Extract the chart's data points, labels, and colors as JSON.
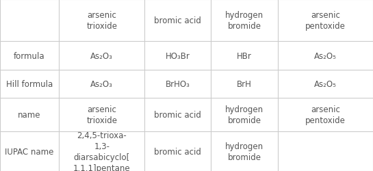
{
  "col_headers": [
    "arsenic\ntrioxide",
    "bromic acid",
    "hydrogen\nbromide",
    "arsenic\npentoxide"
  ],
  "row_headers": [
    "formula",
    "Hill formula",
    "name",
    "IUPAC name"
  ],
  "formula_row": [
    "As₂O₃",
    "HO₃Br",
    "HBr",
    "As₂O₅"
  ],
  "hill_row": [
    "As₂O₃",
    "BrHO₃",
    "BrH",
    "As₂O₅"
  ],
  "name_row": [
    "arsenic\ntrioxide",
    "bromic acid",
    "hydrogen\nbromide",
    "arsenic\npentoxide"
  ],
  "iupac_row": [
    "2,4,5-trioxa-\n1,3-\ndiarsabicyclo[\n1.1.1]pentane",
    "bromic acid",
    "hydrogen\nbromide",
    ""
  ],
  "col_starts": [
    0.0,
    0.158,
    0.388,
    0.565,
    0.745
  ],
  "col_ends": [
    0.158,
    0.388,
    0.565,
    0.745,
    1.0
  ],
  "row_tops": [
    1.0,
    0.755,
    0.59,
    0.425,
    0.23
  ],
  "row_bottoms": [
    0.755,
    0.59,
    0.425,
    0.23,
    0.0
  ],
  "bg_color": "#ffffff",
  "line_color": "#cccccc",
  "text_color": "#555555",
  "font_size": 8.5
}
